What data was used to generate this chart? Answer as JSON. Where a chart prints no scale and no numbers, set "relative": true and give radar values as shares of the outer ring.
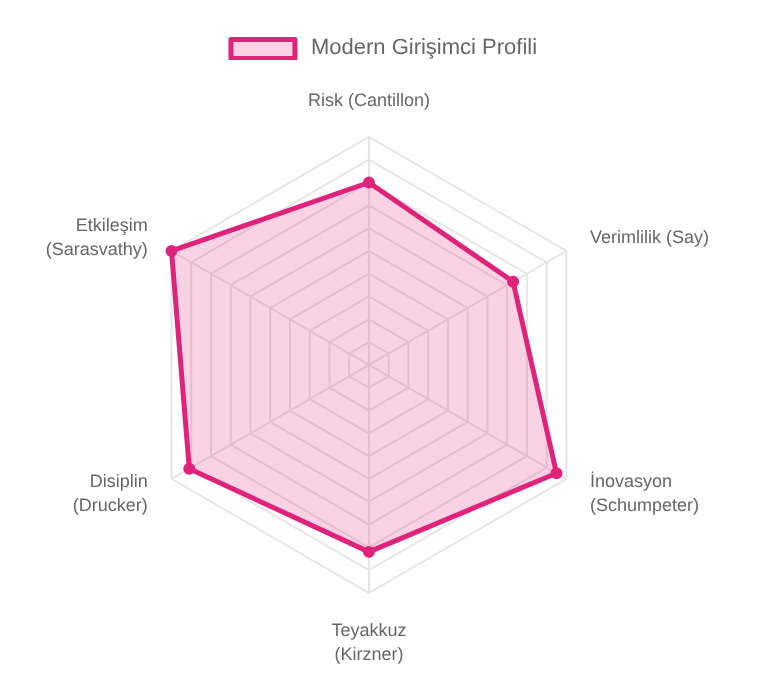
{
  "chart_data": {
    "type": "radar",
    "relative": true,
    "categories": [
      "Risk (Cantillon)",
      "Verimlilik (Say)",
      "İnovasyon\n(Schumpeter)",
      "Teyakkuz\n(Kirzner)",
      "Disiplin\n(Drucker)",
      "Etkileşim\n(Sarasvathy)"
    ],
    "series": [
      {
        "name": "Modern Girişimci Profili",
        "color": "#e0237a",
        "values": [
          0.8,
          0.73,
          0.95,
          0.82,
          0.91,
          1.0
        ]
      }
    ],
    "grid": true,
    "legend": "top",
    "marker": "circle"
  }
}
